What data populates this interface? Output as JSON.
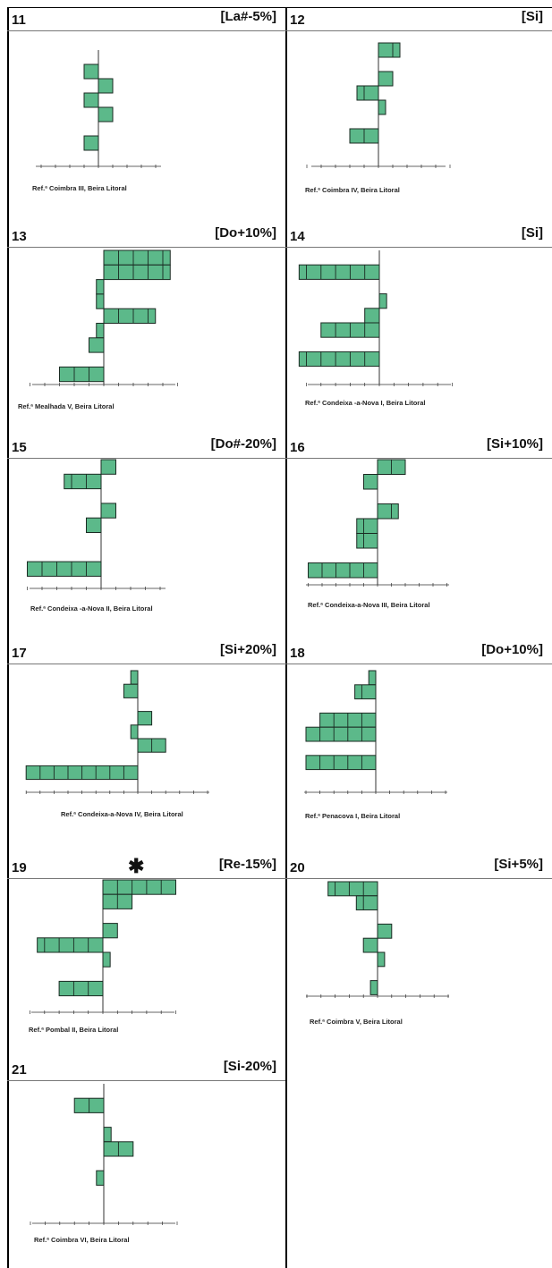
{
  "panels": [
    {
      "num": "11",
      "tag": "[La#-5%]",
      "caption": "Ref.ª Coimbra III, Beira Litoral",
      "star": "",
      "bars": [
        {
          "row": 1,
          "side": "L",
          "n": 1
        },
        {
          "row": 2,
          "side": "R",
          "n": 1
        },
        {
          "row": 3,
          "side": "L",
          "n": 1
        },
        {
          "row": 4,
          "side": "R",
          "n": 1
        },
        {
          "row": 6,
          "side": "L",
          "n": 1
        }
      ]
    },
    {
      "num": "12",
      "tag": "[Si]",
      "caption": "Ref.ª Coimbra IV, Beira Litoral",
      "star": "",
      "bars": [
        {
          "row": 0,
          "side": "R",
          "n": 1.5
        },
        {
          "row": 2,
          "side": "R",
          "n": 1
        },
        {
          "row": 3,
          "side": "L",
          "n": 1.5
        },
        {
          "row": 4,
          "side": "R",
          "n": 0.5
        },
        {
          "row": 6,
          "side": "L",
          "n": 2
        }
      ]
    },
    {
      "num": "13",
      "tag": "[Do+10%]",
      "caption": "Ref.ª Mealhada V, Beira Litoral",
      "star": "",
      "bars": [
        {
          "row": 0,
          "side": "R",
          "n": 4.5
        },
        {
          "row": 1,
          "side": "R",
          "n": 4.5
        },
        {
          "row": 2,
          "side": "L",
          "n": 0.5
        },
        {
          "row": 3,
          "side": "L",
          "n": 0.5
        },
        {
          "row": 4,
          "side": "R",
          "n": 3.5
        },
        {
          "row": 5,
          "side": "L",
          "n": 0.5
        },
        {
          "row": 6,
          "side": "L",
          "n": 1
        },
        {
          "row": 8,
          "side": "L",
          "n": 3
        }
      ]
    },
    {
      "num": "14",
      "tag": "[Si]",
      "caption": "Ref.ª Condeixa -a-Nova I, Beira Litoral",
      "star": "",
      "bars": [
        {
          "row": 1,
          "side": "L",
          "n": 5.5
        },
        {
          "row": 3,
          "side": "R",
          "n": 0.5
        },
        {
          "row": 4,
          "side": "L",
          "n": 1
        },
        {
          "row": 5,
          "side": "L",
          "n": 4
        },
        {
          "row": 7,
          "side": "L",
          "n": 5.5
        }
      ]
    },
    {
      "num": "15",
      "tag": "[Do#-20%]",
      "caption": "Ref.ª Condeixa -a-Nova II, Beira Litoral",
      "star": "",
      "bars": [
        {
          "row": 0,
          "side": "R",
          "n": 1
        },
        {
          "row": 1,
          "side": "L",
          "n": 2.5
        },
        {
          "row": 3,
          "side": "R",
          "n": 1
        },
        {
          "row": 4,
          "side": "L",
          "n": 1
        },
        {
          "row": 7,
          "side": "L",
          "n": 5
        }
      ]
    },
    {
      "num": "16",
      "tag": "[Si+10%]",
      "caption": "Ref.ª Condeixa-a-Nova III, Beira Litoral",
      "star": "",
      "bars": [
        {
          "row": 0,
          "side": "R",
          "n": 2
        },
        {
          "row": 1,
          "side": "L",
          "n": 1
        },
        {
          "row": 3,
          "side": "R",
          "n": 1.5
        },
        {
          "row": 4,
          "side": "L",
          "n": 1.5
        },
        {
          "row": 5,
          "side": "L",
          "n": 1.5
        },
        {
          "row": 7,
          "side": "L",
          "n": 5
        }
      ]
    },
    {
      "num": "17",
      "tag": "[Si+20%]",
      "caption": "Ref.ª Condeixa-a-Nova IV, Beira Litoral",
      "star": "",
      "bars": [
        {
          "row": 0,
          "side": "L",
          "n": 0.5
        },
        {
          "row": 1,
          "side": "L",
          "n": 1
        },
        {
          "row": 3,
          "side": "R",
          "n": 1
        },
        {
          "row": 4,
          "side": "L",
          "n": 0.5
        },
        {
          "row": 5,
          "side": "R",
          "n": 2
        },
        {
          "row": 7,
          "side": "L",
          "n": 8
        }
      ]
    },
    {
      "num": "18",
      "tag": "[Do+10%]",
      "caption": "Ref.ª Penacova I, Beira Litoral",
      "star": "",
      "bars": [
        {
          "row": 0,
          "side": "L",
          "n": 0.5
        },
        {
          "row": 1,
          "side": "L",
          "n": 1.5
        },
        {
          "row": 3,
          "side": "L",
          "n": 4
        },
        {
          "row": 4,
          "side": "L",
          "n": 5
        },
        {
          "row": 6,
          "side": "L",
          "n": 5
        }
      ]
    },
    {
      "num": "19",
      "tag": "[Re-15%]",
      "caption": "Ref.ª Pombal  II, Beira Litoral",
      "star": "✱",
      "bars": [
        {
          "row": 0,
          "side": "R",
          "n": 5
        },
        {
          "row": 1,
          "side": "R",
          "n": 2
        },
        {
          "row": 3,
          "side": "R",
          "n": 1
        },
        {
          "row": 4,
          "side": "L",
          "n": 4.5
        },
        {
          "row": 5,
          "side": "R",
          "n": 0.5
        },
        {
          "row": 7,
          "side": "L",
          "n": 3
        }
      ]
    },
    {
      "num": "20",
      "tag": "[Si+5%]",
      "caption": "Ref.ª Coimbra V, Beira Litoral",
      "star": "",
      "bars": [
        {
          "row": 0,
          "side": "L",
          "n": 3.5
        },
        {
          "row": 1,
          "side": "L",
          "n": 1.5
        },
        {
          "row": 3,
          "side": "R",
          "n": 1
        },
        {
          "row": 4,
          "side": "L",
          "n": 1
        },
        {
          "row": 5,
          "side": "R",
          "n": 0.5
        },
        {
          "row": 7,
          "side": "L",
          "n": 0.5
        }
      ]
    },
    {
      "num": "21",
      "tag": "[Si-20%]",
      "caption": "Ref.ª Coimbra VI, Beira Litoral",
      "star": "",
      "bars": [
        {
          "row": 1,
          "side": "L",
          "n": 2
        },
        {
          "row": 3,
          "side": "R",
          "n": 0.5
        },
        {
          "row": 4,
          "side": "R",
          "n": 2
        },
        {
          "row": 6,
          "side": "L",
          "n": 0.5
        }
      ]
    }
  ],
  "colors": {
    "bar_fill": "#5cb98a",
    "bar_stroke": "#1a2a22",
    "axis": "#333333",
    "rule": "#777777"
  }
}
